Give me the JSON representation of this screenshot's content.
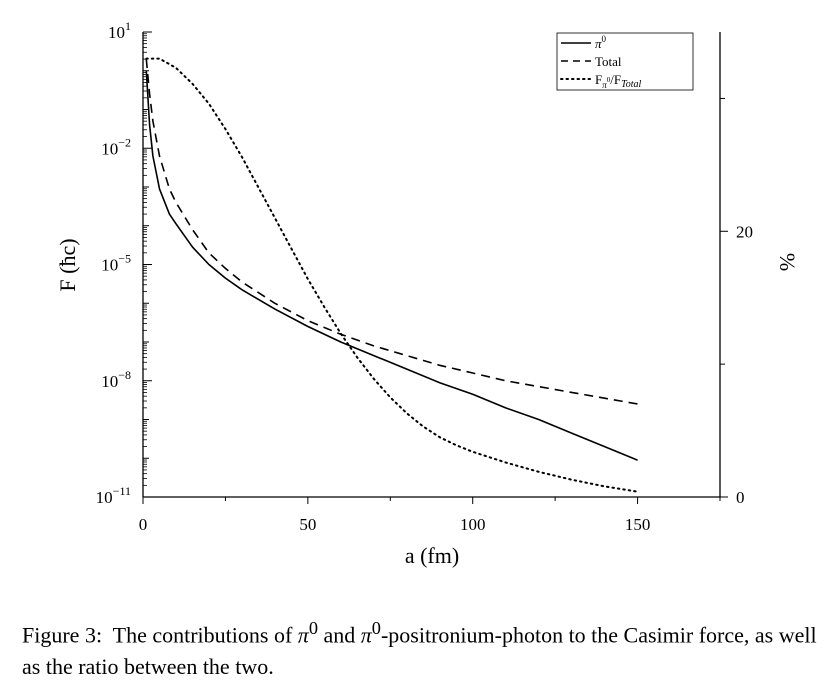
{
  "chart_data": {
    "type": "line",
    "xlabel": "a (fm)",
    "ylabel_left": "F (ħc)",
    "ylabel_right": "%",
    "xlim": [
      0,
      175
    ],
    "ylim_left": [
      1e-11,
      10
    ],
    "ylim_right": [
      0,
      35
    ],
    "y_scale_left": "log",
    "y_scale_right": "linear",
    "x_ticks": [
      0,
      50,
      100,
      150
    ],
    "x_tick_labels": [
      "0",
      "50",
      "100",
      "150"
    ],
    "y_ticks_left_exponents": [
      1,
      -2,
      -5,
      -8,
      -11
    ],
    "y_tick_labels_left": [
      {
        "base": "10",
        "exp": "1"
      },
      {
        "base": "10",
        "exp": "−2"
      },
      {
        "base": "10",
        "exp": "−5"
      },
      {
        "base": "10",
        "exp": "−8"
      },
      {
        "base": "10",
        "exp": "−11"
      }
    ],
    "y_ticks_right": [
      0,
      20
    ],
    "y_tick_labels_right": [
      "0",
      "20"
    ],
    "grid": false,
    "legend_position": "top-right",
    "legend": [
      {
        "label_html": "<tspan font-style=\"italic\">π</tspan><tspan dy=\"-6\" font-size=\"9\">0</tspan>",
        "dash": "solid"
      },
      {
        "label_html": "Total",
        "dash": "dashed"
      },
      {
        "label_html": "F<tspan dy=\"4\" font-size=\"9\" font-style=\"italic\">π</tspan><tspan dy=\"-6\" font-size=\"7\">0</tspan><tspan dy=\"2\">/F</tspan><tspan dy=\"3\" font-size=\"10\" font-style=\"italic\">Total</tspan>",
        "dash": "dotted"
      }
    ],
    "series": [
      {
        "name": "π⁰",
        "axis": "left",
        "style": "solid",
        "x": [
          1,
          2,
          3,
          5,
          8,
          10,
          15,
          20,
          25,
          30,
          40,
          50,
          60,
          70,
          80,
          90,
          100,
          110,
          120,
          130,
          140,
          150
        ],
        "log10_y": [
          0.0,
          -1.4,
          -2.2,
          -3.05,
          -3.7,
          -3.95,
          -4.55,
          -5.0,
          -5.35,
          -5.65,
          -6.15,
          -6.6,
          -7.0,
          -7.35,
          -7.7,
          -8.05,
          -8.35,
          -8.7,
          -9.0,
          -9.35,
          -9.7,
          -10.05
        ]
      },
      {
        "name": "Total",
        "axis": "left",
        "style": "dashed",
        "x": [
          1,
          2,
          3,
          5,
          8,
          10,
          15,
          20,
          25,
          30,
          40,
          50,
          60,
          70,
          80,
          90,
          100,
          110,
          120,
          130,
          140,
          150
        ],
        "log10_y": [
          0.3,
          -0.6,
          -1.3,
          -2.2,
          -3.05,
          -3.4,
          -4.1,
          -4.7,
          -5.1,
          -5.45,
          -6.0,
          -6.45,
          -6.8,
          -7.1,
          -7.35,
          -7.6,
          -7.8,
          -8.0,
          -8.15,
          -8.3,
          -8.45,
          -8.6
        ]
      },
      {
        "name": "Fπ0/FTotal",
        "axis": "right",
        "style": "dotted",
        "x": [
          1,
          5,
          10,
          15,
          20,
          25,
          30,
          35,
          40,
          45,
          50,
          55,
          60,
          65,
          70,
          75,
          80,
          85,
          90,
          95,
          100,
          110,
          120,
          130,
          140,
          150
        ],
        "y": [
          33,
          33,
          32.3,
          31.1,
          29.6,
          27.7,
          25.6,
          23.3,
          21.0,
          18.7,
          16.4,
          14.3,
          12.3,
          10.5,
          8.9,
          7.5,
          6.3,
          5.3,
          4.5,
          3.9,
          3.4,
          2.6,
          1.9,
          1.3,
          0.8,
          0.4
        ]
      }
    ]
  },
  "caption": {
    "prefix": "Figure 3:  The contributions of ",
    "pi1": "π",
    "sup1": "0",
    "mid": " and ",
    "pi2": "π",
    "sup2": "0",
    "rest": "-positronium-photon to the Casimir force, as well as the ratio between the two."
  }
}
